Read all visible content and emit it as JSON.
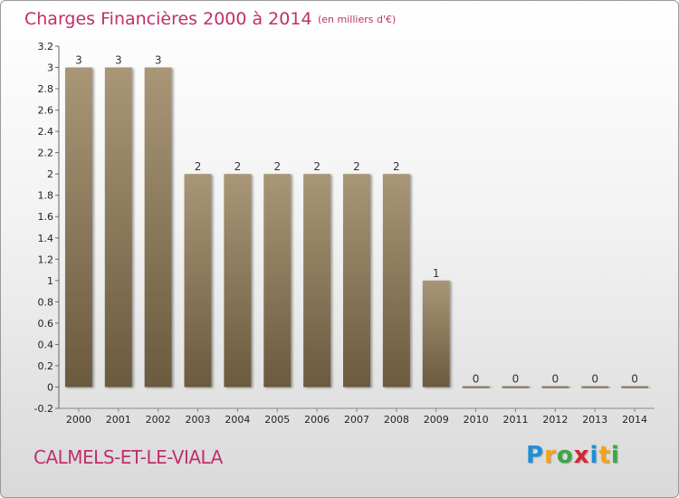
{
  "title": "Charges Financières 2000 à 2014",
  "unit": "(en milliers d'€)",
  "commune": "CALMELS-ET-LE-VIALA",
  "logo": {
    "letters": [
      "P",
      "r",
      "o",
      "x",
      "i",
      "t",
      "i"
    ],
    "colors": [
      "#1f8fd6",
      "#f5a21b",
      "#3aa843",
      "#d3262e",
      "#1f8fd6",
      "#f5a21b",
      "#3aa843"
    ]
  },
  "colors": {
    "bar_top": "#a89677",
    "bar_bottom": "#6b5a3e",
    "title": "#c0306a"
  },
  "chart_data": {
    "type": "bar",
    "categories": [
      "2000",
      "2001",
      "2002",
      "2003",
      "2004",
      "2005",
      "2006",
      "2007",
      "2008",
      "2009",
      "2010",
      "2011",
      "2012",
      "2013",
      "2014"
    ],
    "values": [
      3,
      3,
      3,
      2,
      2,
      2,
      2,
      2,
      2,
      1,
      0,
      0,
      0,
      0,
      0
    ],
    "data_labels": [
      "3",
      "3",
      "3",
      "2",
      "2",
      "2",
      "2",
      "2",
      "2",
      "1",
      "0",
      "0",
      "0",
      "0",
      "0"
    ],
    "ylim": [
      -0.2,
      3.2
    ],
    "yticks": [
      -0.2,
      0,
      0.2,
      0.4,
      0.6,
      0.8,
      1,
      1.2,
      1.4,
      1.6,
      1.8,
      2,
      2.2,
      2.4,
      2.6,
      2.8,
      3,
      3.2
    ],
    "ytick_labels": [
      "-0.2",
      "0",
      "0.2",
      "0.4",
      "0.6",
      "0.8",
      "1",
      "1.2",
      "1.4",
      "1.6",
      "1.8",
      "2",
      "2.2",
      "2.4",
      "2.6",
      "2.8",
      "3",
      "3.2"
    ],
    "grid": false,
    "legend": "none"
  }
}
